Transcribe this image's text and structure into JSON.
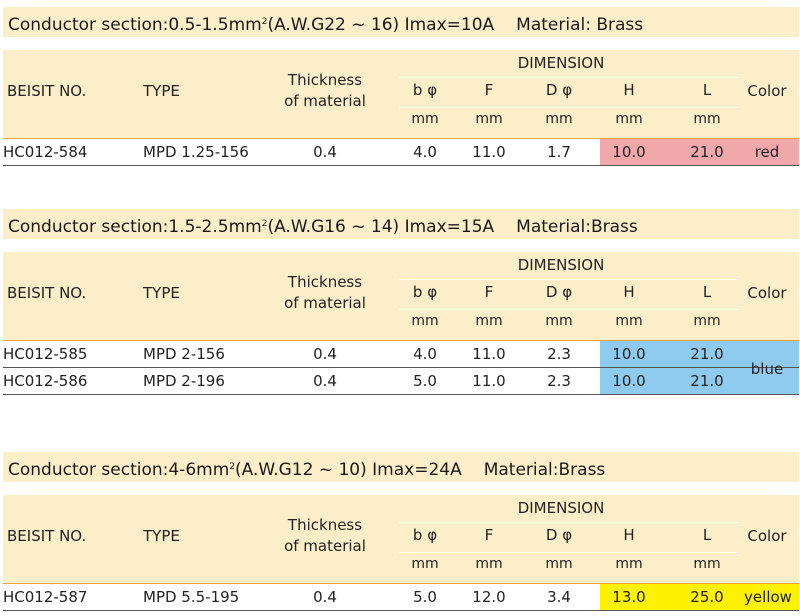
{
  "sections": [
    {
      "title_prefix": "Conductor section:0.5-1.5mm",
      "title_sup": "2",
      "title_suffix": "(A.W.G22 ~ 16) Imax=10A",
      "material": "Material: Brass",
      "rows": [
        {
          "beisit": "HC012-584",
          "type": "MPD 1.25-156",
          "thickness": "0.4",
          "b": "4.0",
          "f": "11.0",
          "d": "1.7",
          "h": "10.0",
          "l": "21.0"
        }
      ],
      "color_label": "red",
      "color_hex": "#f1a8ab"
    },
    {
      "title_prefix": "Conductor section:1.5-2.5mm",
      "title_sup": "2",
      "title_suffix": "(A.W.G16 ~ 14) Imax=15A",
      "material": "Material:Brass",
      "rows": [
        {
          "beisit": "HC012-585",
          "type": "MPD 2-156",
          "thickness": "0.4",
          "b": "4.0",
          "f": "11.0",
          "d": "2.3",
          "h": "10.0",
          "l": "21.0"
        },
        {
          "beisit": "HC012-586",
          "type": "MPD 2-196",
          "thickness": "0.4",
          "b": "5.0",
          "f": "11.0",
          "d": "2.3",
          "h": "10.0",
          "l": "21.0"
        }
      ],
      "color_label": "blue",
      "color_hex": "#8ecbee"
    },
    {
      "title_prefix": "Conductor section:4-6mm",
      "title_sup": "2",
      "title_suffix": "(A.W.G12 ~ 10) Imax=24A",
      "material": "Material:Brass",
      "rows": [
        {
          "beisit": "HC012-587",
          "type": "MPD 5.5-195",
          "thickness": "0.4",
          "b": "5.0",
          "f": "12.0",
          "d": "3.4",
          "h": "13.0",
          "l": "25.0"
        }
      ],
      "color_label": "yellow",
      "color_hex": "#fff200"
    }
  ],
  "header": {
    "beisit_no": "BEISIT NO.",
    "type": "TYPE",
    "thickness_line1": "Thickness",
    "thickness_line2": "of material",
    "dimension": "DIMENSION",
    "b": "b φ",
    "f": "F",
    "d": "D φ",
    "h": "H",
    "l": "L",
    "unit": "mm",
    "color": "Color"
  }
}
